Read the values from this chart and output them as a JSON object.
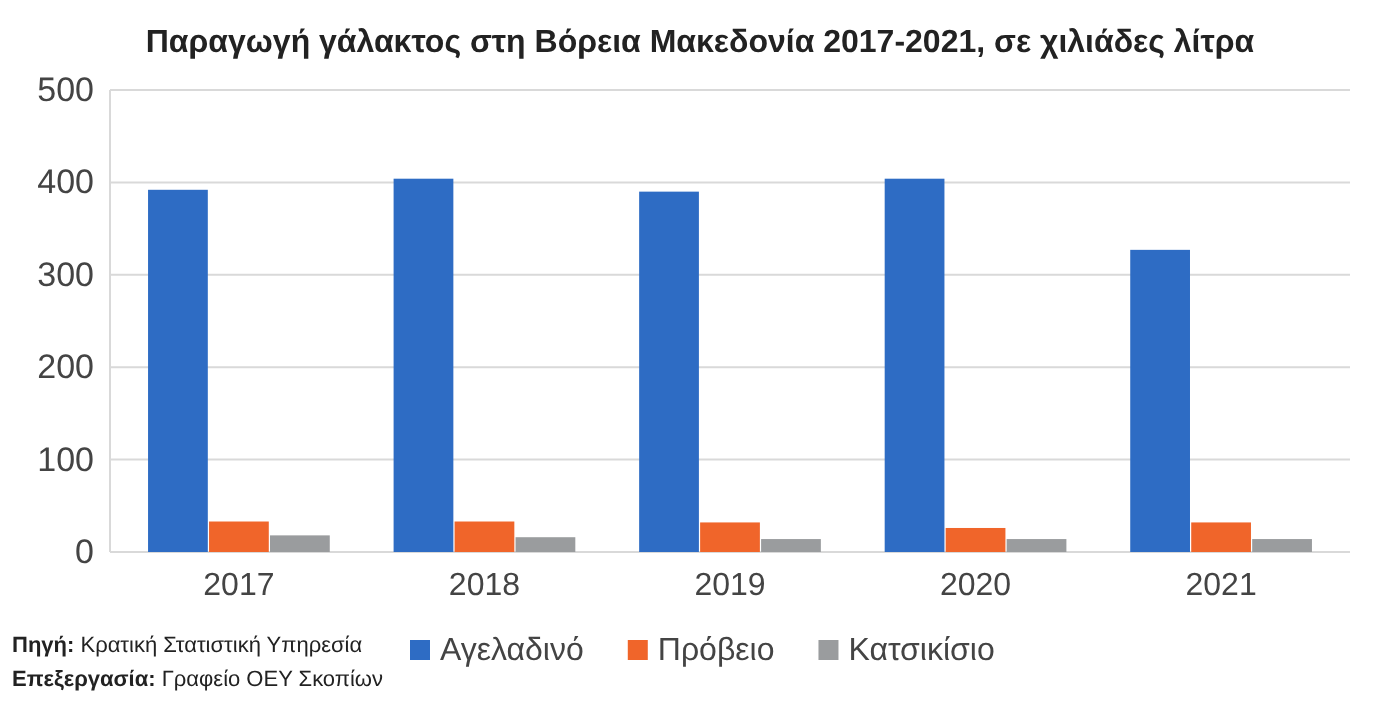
{
  "chart_data": {
    "type": "bar",
    "title": "Παραγωγή γάλακτος στη Βόρεια Μακεδονία 2017-2021, σε χιλιάδες λίτρα",
    "categories": [
      "2017",
      "2018",
      "2019",
      "2020",
      "2021"
    ],
    "series": [
      {
        "name": "Αγελαδινό",
        "color": "#2e6cc4",
        "values": [
          392,
          404,
          390,
          404,
          327
        ]
      },
      {
        "name": "Πρόβειο",
        "color": "#f0652a",
        "values": [
          33,
          33,
          32,
          26,
          32
        ]
      },
      {
        "name": "Κατσικίσιο",
        "color": "#9a9c9e",
        "values": [
          18,
          16,
          14,
          14,
          14
        ]
      }
    ],
    "ylim": [
      0,
      500
    ],
    "yticks": [
      0,
      100,
      200,
      300,
      400,
      500
    ],
    "grid": "y",
    "legend": "bottom",
    "annotations": [
      "Πηγή: Κρατική Στατιστική Υπηρεσία",
      "Επεξεργασία: Γραφείο ΟΕΥ Σκοπίων"
    ]
  }
}
